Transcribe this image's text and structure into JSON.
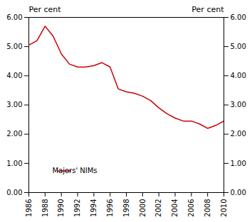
{
  "chart_data": {
    "type": "line",
    "ylabel": "Per cent",
    "y2label": "Per cent",
    "x": [
      1986,
      1987,
      1988,
      1989,
      1990,
      1991,
      1992,
      1993,
      1994,
      1995,
      1996,
      1997,
      1998,
      1999,
      2000,
      2001,
      2002,
      2003,
      2004,
      2005,
      2006,
      2007,
      2008,
      2009,
      2010
    ],
    "series": [
      {
        "name": "Majors' NIMs",
        "color": "#cc0000",
        "values": [
          5.05,
          5.2,
          5.7,
          5.35,
          4.75,
          4.4,
          4.3,
          4.3,
          4.35,
          4.45,
          4.3,
          3.55,
          3.45,
          3.4,
          3.3,
          3.15,
          2.9,
          2.7,
          2.55,
          2.45,
          2.45,
          2.35,
          2.2,
          2.3,
          2.45
        ]
      }
    ],
    "xlim": [
      1986,
      2010
    ],
    "xticks": [
      1986,
      1988,
      1990,
      1992,
      1994,
      1996,
      1998,
      2000,
      2002,
      2004,
      2006,
      2008,
      2010
    ],
    "ylim": [
      0.0,
      6.0
    ],
    "yticks": [
      {
        "value": 0.0,
        "label": "0.00"
      },
      {
        "value": 1.0,
        "label": "1.00"
      },
      {
        "value": 2.0,
        "label": "2.00"
      },
      {
        "value": 3.0,
        "label": "3.00"
      },
      {
        "value": 4.0,
        "label": "4.00"
      },
      {
        "value": 5.0,
        "label": "5.00"
      },
      {
        "value": 6.0,
        "label": "6.00"
      }
    ],
    "y2lim": [
      0.0,
      6.0
    ],
    "y2ticks": [
      {
        "value": 0.0,
        "label": "0.00"
      },
      {
        "value": 1.0,
        "label": "1.00"
      },
      {
        "value": 2.0,
        "label": "2.00"
      },
      {
        "value": 3.0,
        "label": "3.00"
      },
      {
        "value": 4.0,
        "label": "4.00"
      },
      {
        "value": 5.0,
        "label": "5.00"
      },
      {
        "value": 6.0,
        "label": "6.00"
      }
    ],
    "legend": "lower left",
    "grid": false
  }
}
